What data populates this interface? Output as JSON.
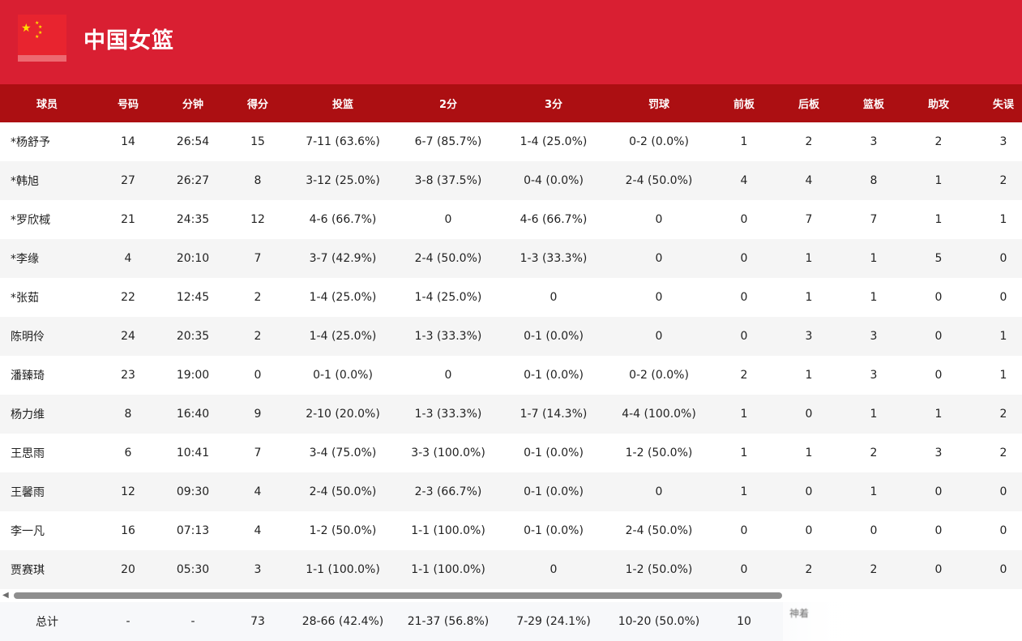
{
  "team": {
    "name": "中国女篮"
  },
  "columns": [
    "球员",
    "号码",
    "分钟",
    "得分",
    "投篮",
    "2分",
    "3分",
    "罚球",
    "前板",
    "后板",
    "篮板",
    "助攻",
    "失误"
  ],
  "players": [
    [
      "*杨舒予",
      "14",
      "26:54",
      "15",
      "7-11 (63.6%)",
      "6-7 (85.7%)",
      "1-4 (25.0%)",
      "0-2 (0.0%)",
      "1",
      "2",
      "3",
      "2",
      "3"
    ],
    [
      " *韩旭",
      "27",
      "26:27",
      "8",
      "3-12 (25.0%)",
      "3-8 (37.5%)",
      "0-4 (0.0%)",
      "2-4 (50.0%)",
      "4",
      "4",
      "8",
      "1",
      "2"
    ],
    [
      "*罗欣棫",
      "21",
      "24:35",
      "12",
      "4-6 (66.7%)",
      "0",
      "4-6 (66.7%)",
      "0",
      "0",
      "7",
      "7",
      "1",
      "1"
    ],
    [
      " *李缘",
      "4",
      "20:10",
      "7",
      "3-7 (42.9%)",
      "2-4 (50.0%)",
      "1-3 (33.3%)",
      "0",
      "0",
      "1",
      "1",
      "5",
      "0"
    ],
    [
      " *张茹",
      "22",
      "12:45",
      "2",
      "1-4 (25.0%)",
      "1-4 (25.0%)",
      "0",
      "0",
      "0",
      "1",
      "1",
      "0",
      "0"
    ],
    [
      "陈明伶",
      "24",
      "20:35",
      "2",
      "1-4 (25.0%)",
      "1-3 (33.3%)",
      "0-1 (0.0%)",
      "0",
      "0",
      "3",
      "3",
      "0",
      "1"
    ],
    [
      "潘臻琦",
      "23",
      "19:00",
      "0",
      "0-1 (0.0%)",
      "0",
      "0-1 (0.0%)",
      "0-2 (0.0%)",
      "2",
      "1",
      "3",
      "0",
      "1"
    ],
    [
      "杨力维",
      "8",
      "16:40",
      "9",
      "2-10 (20.0%)",
      "1-3 (33.3%)",
      "1-7 (14.3%)",
      "4-4 (100.0%)",
      "1",
      "0",
      "1",
      "1",
      "2"
    ],
    [
      "王思雨",
      "6",
      "10:41",
      "7",
      "3-4 (75.0%)",
      "3-3 (100.0%)",
      "0-1 (0.0%)",
      "1-2 (50.0%)",
      "1",
      "1",
      "2",
      "3",
      "2"
    ],
    [
      "王馨雨",
      "12",
      "09:30",
      "4",
      "2-4 (50.0%)",
      "2-3 (66.7%)",
      "0-1 (0.0%)",
      "0",
      "1",
      "0",
      "1",
      "0",
      "0"
    ],
    [
      "李一凡",
      "16",
      "07:13",
      "4",
      "1-2 (50.0%)",
      "1-1 (100.0%)",
      "0-1 (0.0%)",
      "2-4 (50.0%)",
      "0",
      "0",
      "0",
      "0",
      "0"
    ],
    [
      "贾赛琪",
      "20",
      "05:30",
      "3",
      "1-1 (100.0%)",
      "1-1 (100.0%)",
      "0",
      "1-2 (50.0%)",
      "0",
      "2",
      "2",
      "0",
      "0"
    ]
  ],
  "totals": [
    "总计",
    "-",
    "-",
    "73",
    "28-66 (42.4%)",
    "21-37 (56.8%)",
    "7-29 (24.1%)",
    "10-20 (50.0%)",
    "10"
  ],
  "overlay_text": "神着"
}
